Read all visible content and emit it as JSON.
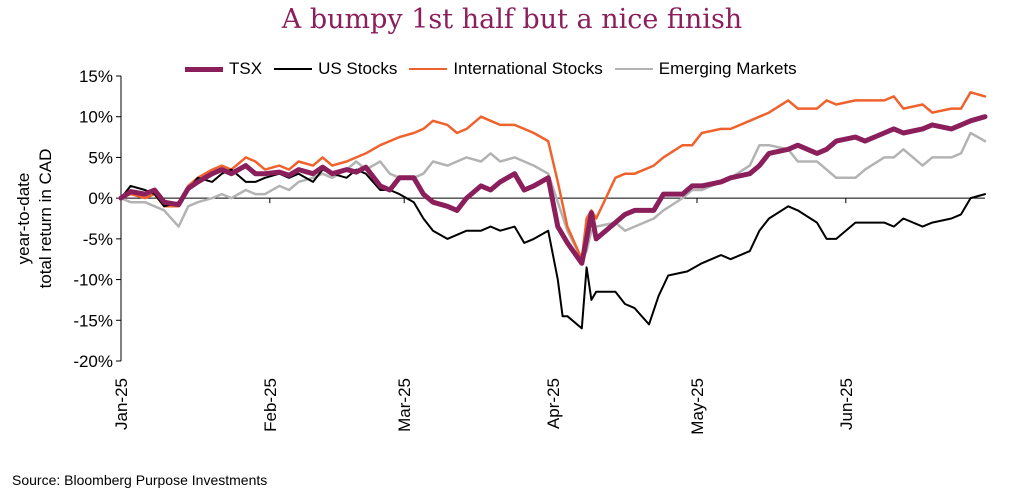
{
  "title": "A bumpy 1st half but a nice finish",
  "source": "Source: Bloomberg Purpose Investments",
  "chart_data": {
    "type": "line",
    "title": "A bumpy 1st half but a nice finish",
    "ylabel_lines": [
      "year-to-date",
      "total return in CAD"
    ],
    "xlabel": "",
    "y_tick_labels": [
      "15%",
      "10%",
      "5%",
      "0%",
      "-5%",
      "-10%",
      "-15%",
      "-20%"
    ],
    "y_ticks": [
      15,
      10,
      5,
      0,
      -5,
      -10,
      -15,
      -20
    ],
    "ylim": [
      -20,
      15
    ],
    "x_tick_labels": [
      "Jan-25",
      "Feb-25",
      "Mar-25",
      "Apr-25",
      "May-25",
      "Jun-25"
    ],
    "x_ticks": [
      "2025-01-01",
      "2025-02-01",
      "2025-03-01",
      "2025-04-01",
      "2025-05-01",
      "2025-06-01"
    ],
    "xlim": [
      "2025-01-01",
      "2025-06-30"
    ],
    "legend_position": "top",
    "grid": false,
    "series": [
      {
        "name": "TSX",
        "color": "#8a1f5c",
        "x": [
          "2025-01-01",
          "2025-01-03",
          "2025-01-06",
          "2025-01-08",
          "2025-01-10",
          "2025-01-13",
          "2025-01-15",
          "2025-01-17",
          "2025-01-20",
          "2025-01-22",
          "2025-01-24",
          "2025-01-27",
          "2025-01-29",
          "2025-01-31",
          "2025-02-03",
          "2025-02-05",
          "2025-02-07",
          "2025-02-10",
          "2025-02-12",
          "2025-02-14",
          "2025-02-17",
          "2025-02-19",
          "2025-02-21",
          "2025-02-24",
          "2025-02-26",
          "2025-02-28",
          "2025-03-03",
          "2025-03-05",
          "2025-03-07",
          "2025-03-10",
          "2025-03-12",
          "2025-03-14",
          "2025-03-17",
          "2025-03-19",
          "2025-03-21",
          "2025-03-24",
          "2025-03-26",
          "2025-03-28",
          "2025-03-31",
          "2025-04-02",
          "2025-04-04",
          "2025-04-07",
          "2025-04-08",
          "2025-04-09",
          "2025-04-10",
          "2025-04-14",
          "2025-04-16",
          "2025-04-18",
          "2025-04-22",
          "2025-04-24",
          "2025-04-28",
          "2025-04-30",
          "2025-05-02",
          "2025-05-06",
          "2025-05-08",
          "2025-05-12",
          "2025-05-14",
          "2025-05-16",
          "2025-05-20",
          "2025-05-22",
          "2025-05-26",
          "2025-05-28",
          "2025-05-30",
          "2025-06-03",
          "2025-06-05",
          "2025-06-09",
          "2025-06-11",
          "2025-06-13",
          "2025-06-17",
          "2025-06-19",
          "2025-06-23",
          "2025-06-25",
          "2025-06-27",
          "2025-06-30"
        ],
        "values": [
          0.0,
          0.8,
          0.5,
          1.0,
          -0.5,
          -0.8,
          1.2,
          2.0,
          3.0,
          3.5,
          3.0,
          4.0,
          3.0,
          3.0,
          3.2,
          2.8,
          3.5,
          3.0,
          3.8,
          3.0,
          3.5,
          3.2,
          3.8,
          1.5,
          1.0,
          2.5,
          2.5,
          0.5,
          -0.5,
          -1.0,
          -1.5,
          0.0,
          1.5,
          1.0,
          2.0,
          3.0,
          1.0,
          1.5,
          2.5,
          -3.5,
          -5.5,
          -8.0,
          -5.0,
          -1.8,
          -5.0,
          -3.0,
          -2.0,
          -1.5,
          -1.5,
          0.5,
          0.5,
          1.5,
          1.5,
          2.0,
          2.5,
          3.0,
          4.0,
          5.5,
          6.0,
          6.5,
          5.5,
          6.0,
          7.0,
          7.5,
          7.0,
          8.0,
          8.5,
          8.0,
          8.5,
          9.0,
          8.5,
          9.0,
          9.5,
          10.0
        ]
      },
      {
        "name": "US Stocks",
        "color": "#000000",
        "x": [
          "2025-01-01",
          "2025-01-03",
          "2025-01-06",
          "2025-01-08",
          "2025-01-10",
          "2025-01-13",
          "2025-01-15",
          "2025-01-17",
          "2025-01-20",
          "2025-01-22",
          "2025-01-24",
          "2025-01-27",
          "2025-01-29",
          "2025-01-31",
          "2025-02-03",
          "2025-02-05",
          "2025-02-07",
          "2025-02-10",
          "2025-02-12",
          "2025-02-14",
          "2025-02-17",
          "2025-02-19",
          "2025-02-21",
          "2025-02-24",
          "2025-02-26",
          "2025-02-28",
          "2025-03-03",
          "2025-03-05",
          "2025-03-07",
          "2025-03-10",
          "2025-03-12",
          "2025-03-14",
          "2025-03-17",
          "2025-03-19",
          "2025-03-21",
          "2025-03-24",
          "2025-03-26",
          "2025-03-28",
          "2025-03-31",
          "2025-04-02",
          "2025-04-03",
          "2025-04-04",
          "2025-04-07",
          "2025-04-08",
          "2025-04-09",
          "2025-04-10",
          "2025-04-14",
          "2025-04-16",
          "2025-04-18",
          "2025-04-21",
          "2025-04-23",
          "2025-04-25",
          "2025-04-29",
          "2025-05-02",
          "2025-05-06",
          "2025-05-08",
          "2025-05-12",
          "2025-05-14",
          "2025-05-16",
          "2025-05-20",
          "2025-05-22",
          "2025-05-26",
          "2025-05-28",
          "2025-05-30",
          "2025-06-03",
          "2025-06-05",
          "2025-06-09",
          "2025-06-11",
          "2025-06-13",
          "2025-06-17",
          "2025-06-19",
          "2025-06-23",
          "2025-06-25",
          "2025-06-27",
          "2025-06-30"
        ],
        "values": [
          0.0,
          1.5,
          1.0,
          0.5,
          -1.0,
          -0.5,
          1.0,
          2.5,
          2.0,
          3.0,
          3.5,
          2.0,
          2.0,
          2.5,
          3.0,
          2.5,
          3.0,
          2.0,
          3.5,
          3.0,
          2.5,
          3.5,
          3.0,
          1.0,
          1.0,
          0.5,
          -0.5,
          -2.5,
          -4.0,
          -5.0,
          -4.5,
          -4.0,
          -4.0,
          -3.5,
          -4.0,
          -3.5,
          -5.5,
          -5.0,
          -4.0,
          -10.0,
          -14.5,
          -14.5,
          -16.0,
          -8.5,
          -12.5,
          -11.5,
          -11.5,
          -13.0,
          -13.5,
          -15.5,
          -12.0,
          -9.5,
          -9.0,
          -8.0,
          -7.0,
          -7.5,
          -6.5,
          -4.0,
          -2.5,
          -1.0,
          -1.5,
          -3.0,
          -5.0,
          -5.0,
          -3.0,
          -3.0,
          -3.0,
          -3.5,
          -2.5,
          -3.5,
          -3.0,
          -2.5,
          -2.0,
          0.0,
          0.5
        ]
      },
      {
        "name": "International Stocks",
        "color": "#f0622d",
        "x": [
          "2025-01-01",
          "2025-01-03",
          "2025-01-06",
          "2025-01-08",
          "2025-01-10",
          "2025-01-13",
          "2025-01-15",
          "2025-01-17",
          "2025-01-20",
          "2025-01-22",
          "2025-01-24",
          "2025-01-27",
          "2025-01-29",
          "2025-01-31",
          "2025-02-03",
          "2025-02-05",
          "2025-02-07",
          "2025-02-10",
          "2025-02-12",
          "2025-02-14",
          "2025-02-17",
          "2025-02-19",
          "2025-02-21",
          "2025-02-24",
          "2025-02-26",
          "2025-02-28",
          "2025-03-03",
          "2025-03-05",
          "2025-03-07",
          "2025-03-10",
          "2025-03-12",
          "2025-03-14",
          "2025-03-17",
          "2025-03-19",
          "2025-03-21",
          "2025-03-24",
          "2025-03-26",
          "2025-03-28",
          "2025-03-31",
          "2025-04-02",
          "2025-04-04",
          "2025-04-07",
          "2025-04-08",
          "2025-04-09",
          "2025-04-10",
          "2025-04-14",
          "2025-04-16",
          "2025-04-18",
          "2025-04-22",
          "2025-04-24",
          "2025-04-28",
          "2025-04-30",
          "2025-05-02",
          "2025-05-06",
          "2025-05-08",
          "2025-05-12",
          "2025-05-14",
          "2025-05-16",
          "2025-05-20",
          "2025-05-22",
          "2025-05-26",
          "2025-05-28",
          "2025-05-30",
          "2025-06-03",
          "2025-06-05",
          "2025-06-09",
          "2025-06-11",
          "2025-06-13",
          "2025-06-17",
          "2025-06-19",
          "2025-06-23",
          "2025-06-25",
          "2025-06-27",
          "2025-06-30"
        ],
        "values": [
          0.0,
          0.5,
          0.0,
          0.5,
          -1.0,
          -1.0,
          1.5,
          2.5,
          3.5,
          4.0,
          3.5,
          5.0,
          4.5,
          3.5,
          4.0,
          3.5,
          4.5,
          4.0,
          5.0,
          4.0,
          4.5,
          5.0,
          5.5,
          6.5,
          7.0,
          7.5,
          8.0,
          8.5,
          9.5,
          9.0,
          8.0,
          8.5,
          10.0,
          9.5,
          9.0,
          9.0,
          8.5,
          8.0,
          7.0,
          2.0,
          -3.5,
          -7.5,
          -2.5,
          -1.5,
          -2.5,
          2.5,
          3.0,
          3.0,
          4.0,
          5.0,
          6.5,
          6.5,
          8.0,
          8.5,
          8.5,
          9.5,
          10.0,
          10.5,
          12.0,
          11.0,
          11.0,
          12.0,
          11.5,
          12.0,
          12.0,
          12.0,
          12.5,
          11.0,
          11.5,
          10.5,
          11.0,
          11.0,
          13.0,
          12.5
        ]
      },
      {
        "name": "Emerging Markets",
        "color": "#b3b3b3",
        "x": [
          "2025-01-01",
          "2025-01-03",
          "2025-01-06",
          "2025-01-08",
          "2025-01-10",
          "2025-01-13",
          "2025-01-15",
          "2025-01-17",
          "2025-01-20",
          "2025-01-22",
          "2025-01-24",
          "2025-01-27",
          "2025-01-29",
          "2025-01-31",
          "2025-02-03",
          "2025-02-05",
          "2025-02-07",
          "2025-02-10",
          "2025-02-12",
          "2025-02-14",
          "2025-02-17",
          "2025-02-19",
          "2025-02-21",
          "2025-02-24",
          "2025-02-26",
          "2025-02-28",
          "2025-03-03",
          "2025-03-05",
          "2025-03-07",
          "2025-03-10",
          "2025-03-12",
          "2025-03-14",
          "2025-03-17",
          "2025-03-19",
          "2025-03-21",
          "2025-03-24",
          "2025-03-26",
          "2025-03-28",
          "2025-03-31",
          "2025-04-02",
          "2025-04-04",
          "2025-04-07",
          "2025-04-08",
          "2025-04-09",
          "2025-04-10",
          "2025-04-14",
          "2025-04-16",
          "2025-04-18",
          "2025-04-22",
          "2025-04-24",
          "2025-04-28",
          "2025-04-30",
          "2025-05-02",
          "2025-05-06",
          "2025-05-08",
          "2025-05-12",
          "2025-05-14",
          "2025-05-16",
          "2025-05-20",
          "2025-05-22",
          "2025-05-26",
          "2025-05-28",
          "2025-05-30",
          "2025-06-03",
          "2025-06-05",
          "2025-06-09",
          "2025-06-11",
          "2025-06-13",
          "2025-06-17",
          "2025-06-19",
          "2025-06-23",
          "2025-06-25",
          "2025-06-27",
          "2025-06-30"
        ],
        "values": [
          0.0,
          -0.5,
          -0.5,
          -1.0,
          -1.5,
          -3.5,
          -1.0,
          -0.5,
          0.0,
          0.5,
          0.0,
          1.0,
          0.5,
          0.5,
          1.5,
          1.0,
          2.0,
          2.5,
          3.0,
          2.5,
          3.5,
          4.5,
          3.5,
          4.5,
          3.0,
          2.5,
          2.5,
          3.0,
          4.5,
          4.0,
          4.5,
          5.0,
          4.5,
          5.5,
          4.5,
          5.0,
          4.5,
          4.0,
          3.0,
          -0.5,
          -4.0,
          -7.5,
          -6.5,
          -4.0,
          -3.5,
          -3.0,
          -4.0,
          -3.5,
          -2.5,
          -1.5,
          0.0,
          1.0,
          1.0,
          2.0,
          2.5,
          4.0,
          6.5,
          6.5,
          6.0,
          4.5,
          4.5,
          3.5,
          2.5,
          2.5,
          3.5,
          5.0,
          5.0,
          6.0,
          4.0,
          5.0,
          5.0,
          5.5,
          8.0,
          7.0
        ]
      }
    ]
  }
}
